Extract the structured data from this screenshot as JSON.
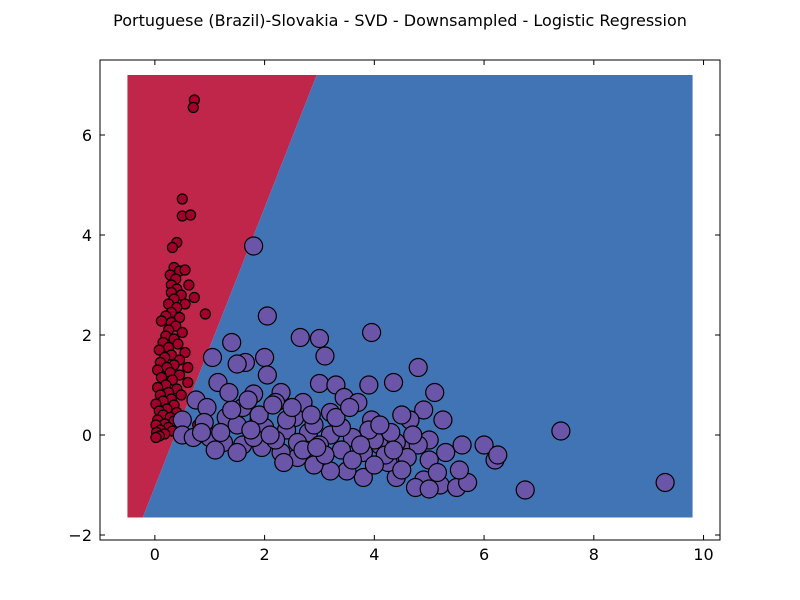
{
  "chart_data": {
    "type": "scatter",
    "title": "Portuguese (Brazil)-Slovakia - SVD - Downsampled - Logistic Regression",
    "xlabel": "",
    "ylabel": "",
    "xlim": [
      -1,
      10.3
    ],
    "ylim": [
      -2.1,
      7.5
    ],
    "xticks": [
      0,
      2,
      4,
      6,
      8,
      10
    ],
    "yticks": [
      -2,
      0,
      2,
      4,
      6
    ],
    "xtick_labels": [
      "0",
      "2",
      "4",
      "6",
      "8",
      "10"
    ],
    "ytick_labels": [
      "−2",
      "0",
      "2",
      "4",
      "6"
    ],
    "grid": false,
    "decision_regions": {
      "x_range": [
        -0.5,
        9.8
      ],
      "y_range": [
        -1.65,
        7.2
      ],
      "boundary": [
        [
          -0.22,
          -1.65
        ],
        [
          2.95,
          7.2
        ]
      ],
      "left_class_color": "#c0254a",
      "right_class_color": "#4074b4"
    },
    "series": [
      {
        "color": "#a0002a",
        "marker_size": "small",
        "points": [
          [
            0.72,
            6.7
          ],
          [
            0.7,
            6.55
          ],
          [
            0.5,
            4.72
          ],
          [
            0.5,
            4.38
          ],
          [
            0.65,
            4.4
          ],
          [
            0.4,
            3.85
          ],
          [
            0.32,
            3.75
          ],
          [
            0.35,
            3.35
          ],
          [
            0.45,
            3.28
          ],
          [
            0.55,
            3.3
          ],
          [
            0.28,
            3.2
          ],
          [
            0.38,
            3.12
          ],
          [
            0.3,
            3.0
          ],
          [
            0.62,
            3.0
          ],
          [
            0.4,
            2.92
          ],
          [
            0.3,
            2.85
          ],
          [
            0.48,
            2.8
          ],
          [
            0.35,
            2.72
          ],
          [
            0.72,
            2.75
          ],
          [
            0.25,
            2.62
          ],
          [
            0.55,
            2.62
          ],
          [
            0.4,
            2.55
          ],
          [
            0.3,
            2.45
          ],
          [
            0.2,
            2.38
          ],
          [
            0.45,
            2.35
          ],
          [
            0.92,
            2.42
          ],
          [
            0.3,
            2.25
          ],
          [
            0.12,
            2.28
          ],
          [
            0.38,
            2.18
          ],
          [
            0.25,
            2.1
          ],
          [
            0.5,
            2.05
          ],
          [
            0.2,
            1.98
          ],
          [
            0.35,
            1.92
          ],
          [
            0.15,
            1.85
          ],
          [
            0.42,
            1.82
          ],
          [
            0.25,
            1.75
          ],
          [
            0.08,
            1.7
          ],
          [
            0.55,
            1.65
          ],
          [
            0.3,
            1.6
          ],
          [
            0.18,
            1.55
          ],
          [
            0.45,
            1.5
          ],
          [
            0.1,
            1.45
          ],
          [
            0.35,
            1.4
          ],
          [
            0.22,
            1.35
          ],
          [
            0.6,
            1.35
          ],
          [
            0.05,
            1.3
          ],
          [
            0.28,
            1.25
          ],
          [
            0.45,
            1.2
          ],
          [
            0.12,
            1.15
          ],
          [
            0.32,
            1.1
          ],
          [
            0.6,
            1.05
          ],
          [
            0.2,
            1.0
          ],
          [
            0.05,
            0.95
          ],
          [
            0.4,
            0.92
          ],
          [
            0.25,
            0.85
          ],
          [
            0.1,
            0.8
          ],
          [
            0.48,
            0.8
          ],
          [
            0.3,
            0.72
          ],
          [
            0.15,
            0.68
          ],
          [
            0.02,
            0.62
          ],
          [
            0.35,
            0.6
          ],
          [
            0.22,
            0.52
          ],
          [
            0.08,
            0.48
          ],
          [
            0.4,
            0.45
          ],
          [
            0.15,
            0.4
          ],
          [
            0.28,
            0.35
          ],
          [
            0.05,
            0.3
          ],
          [
            0.35,
            0.28
          ],
          [
            0.18,
            0.22
          ],
          [
            0.02,
            0.2
          ],
          [
            0.78,
            0.2
          ],
          [
            0.25,
            0.15
          ],
          [
            0.1,
            0.1
          ],
          [
            0.32,
            0.08
          ],
          [
            0.03,
            0.05
          ],
          [
            0.18,
            0.02
          ],
          [
            0.08,
            -0.02
          ],
          [
            0.02,
            -0.05
          ]
        ]
      },
      {
        "color": "#6a55a8",
        "marker_size": "large",
        "points": [
          [
            1.8,
            3.78
          ],
          [
            2.05,
            2.38
          ],
          [
            3.95,
            2.05
          ],
          [
            2.65,
            1.95
          ],
          [
            3.0,
            1.93
          ],
          [
            1.4,
            1.85
          ],
          [
            2.0,
            1.55
          ],
          [
            1.05,
            1.55
          ],
          [
            3.1,
            1.58
          ],
          [
            1.65,
            1.45
          ],
          [
            4.8,
            1.35
          ],
          [
            1.5,
            1.42
          ],
          [
            2.05,
            1.2
          ],
          [
            3.0,
            1.03
          ],
          [
            3.3,
            1.0
          ],
          [
            3.9,
            1.0
          ],
          [
            4.35,
            1.05
          ],
          [
            1.15,
            1.05
          ],
          [
            5.1,
            0.85
          ],
          [
            2.3,
            0.85
          ],
          [
            1.8,
            0.82
          ],
          [
            3.45,
            0.75
          ],
          [
            0.75,
            0.7
          ],
          [
            2.2,
            0.65
          ],
          [
            3.7,
            0.65
          ],
          [
            1.6,
            0.55
          ],
          [
            2.7,
            0.65
          ],
          [
            4.9,
            0.5
          ],
          [
            0.95,
            0.55
          ],
          [
            3.2,
            0.45
          ],
          [
            4.65,
            0.3
          ],
          [
            5.25,
            0.3
          ],
          [
            1.3,
            0.35
          ],
          [
            2.55,
            0.35
          ],
          [
            3.95,
            0.3
          ],
          [
            0.5,
            0.3
          ],
          [
            1.9,
            0.3
          ],
          [
            6.0,
            -0.2
          ],
          [
            7.4,
            0.08
          ],
          [
            0.5,
            0.0
          ],
          [
            6.2,
            -0.5
          ],
          [
            6.25,
            -0.4
          ],
          [
            6.75,
            -1.1
          ],
          [
            9.3,
            -0.95
          ],
          [
            5.2,
            -1.0
          ],
          [
            5.5,
            -1.05
          ],
          [
            4.9,
            -0.9
          ],
          [
            5.7,
            -0.95
          ],
          [
            4.75,
            -1.05
          ],
          [
            5.0,
            -1.08
          ],
          [
            5.55,
            -0.7
          ],
          [
            5.3,
            -0.35
          ],
          [
            5.0,
            -0.1
          ],
          [
            5.6,
            -0.2
          ],
          [
            4.6,
            -0.3
          ],
          [
            4.1,
            -0.2
          ],
          [
            4.4,
            -0.85
          ],
          [
            4.25,
            -0.55
          ],
          [
            3.8,
            -0.85
          ],
          [
            3.5,
            -0.72
          ],
          [
            3.2,
            -0.72
          ],
          [
            2.9,
            -0.6
          ],
          [
            2.6,
            -0.45
          ],
          [
            2.3,
            -0.35
          ],
          [
            1.95,
            -0.25
          ],
          [
            1.6,
            -0.2
          ],
          [
            1.25,
            -0.15
          ],
          [
            1.0,
            -0.05
          ],
          [
            0.7,
            -0.05
          ],
          [
            1.5,
            0.2
          ],
          [
            2.0,
            0.15
          ],
          [
            2.4,
            0.1
          ],
          [
            2.8,
            0.05
          ],
          [
            3.2,
            0.0
          ],
          [
            3.6,
            -0.05
          ],
          [
            4.0,
            -0.1
          ],
          [
            4.4,
            -0.15
          ],
          [
            4.8,
            -0.2
          ],
          [
            1.2,
            0.05
          ],
          [
            1.8,
            -0.05
          ],
          [
            2.2,
            -0.1
          ],
          [
            2.6,
            -0.15
          ],
          [
            3.0,
            -0.2
          ],
          [
            3.4,
            -0.3
          ],
          [
            3.8,
            -0.35
          ],
          [
            4.2,
            -0.4
          ],
          [
            4.6,
            -0.45
          ],
          [
            5.0,
            -0.5
          ],
          [
            1.4,
            0.5
          ],
          [
            1.9,
            0.4
          ],
          [
            2.4,
            0.3
          ],
          [
            2.9,
            0.2
          ],
          [
            3.4,
            0.15
          ],
          [
            3.9,
            0.1
          ],
          [
            4.3,
            0.05
          ],
          [
            4.7,
            0.0
          ],
          [
            0.9,
            0.25
          ],
          [
            1.7,
            0.7
          ],
          [
            2.5,
            0.55
          ],
          [
            3.3,
            0.35
          ],
          [
            4.1,
            0.2
          ],
          [
            2.1,
            0.0
          ],
          [
            2.7,
            -0.3
          ],
          [
            3.1,
            -0.4
          ],
          [
            3.6,
            -0.5
          ],
          [
            4.0,
            -0.6
          ],
          [
            4.5,
            -0.7
          ],
          [
            5.15,
            -0.75
          ],
          [
            1.1,
            -0.3
          ],
          [
            1.5,
            -0.35
          ],
          [
            0.85,
            0.05
          ],
          [
            2.35,
            -0.55
          ],
          [
            2.95,
            -0.25
          ],
          [
            3.75,
            -0.2
          ],
          [
            4.35,
            -0.3
          ],
          [
            1.35,
            0.85
          ],
          [
            2.15,
            0.6
          ],
          [
            3.55,
            0.55
          ],
          [
            4.5,
            0.4
          ],
          [
            2.85,
            0.4
          ],
          [
            1.75,
            0.1
          ]
        ]
      }
    ]
  }
}
